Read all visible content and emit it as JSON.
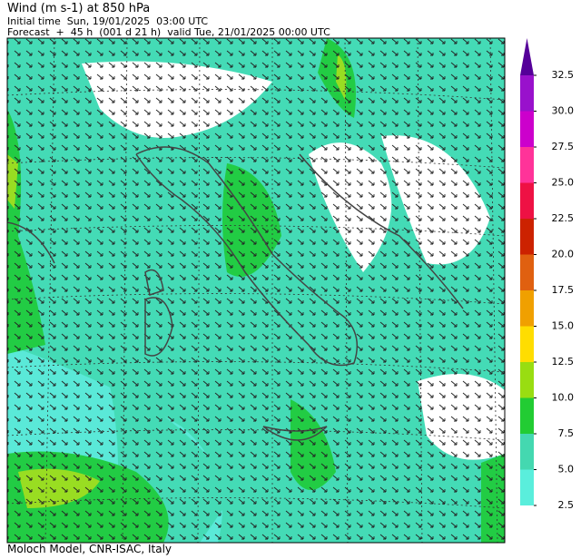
{
  "header": {
    "title": "Wind (m s-1) at 850 hPa",
    "initial_time": "Initial time  Sun, 19/01/2025  03:00 UTC",
    "forecast": "Forecast  +  45 h  (001 d 21 h)  valid Tue, 21/01/2025 00:00 UTC"
  },
  "colorbar": {
    "ticks": [
      {
        "value": 2.5,
        "label": "2.5"
      },
      {
        "value": 5,
        "label": "5.0"
      },
      {
        "value": 7.5,
        "label": "7.5"
      },
      {
        "value": 10,
        "label": "10.0"
      },
      {
        "value": 12.5,
        "label": "12.5"
      },
      {
        "value": 15,
        "label": "15.0"
      },
      {
        "value": 17.5,
        "label": "17.5"
      },
      {
        "value": 20,
        "label": "20.0"
      },
      {
        "value": 22.5,
        "label": "22.5"
      },
      {
        "value": 25,
        "label": "25.0"
      },
      {
        "value": 27.5,
        "label": "27.5"
      },
      {
        "value": 30,
        "label": "30.0"
      },
      {
        "value": 32.5,
        "label": "32.5"
      }
    ],
    "colors": [
      "#5aeedc",
      "#44d8b0",
      "#22cc33",
      "#99dd11",
      "#ffdd00",
      "#f0a000",
      "#e06010",
      "#cc2200",
      "#ee1144",
      "#ff3399",
      "#cc00cc",
      "#9911cc",
      "#550099"
    ]
  },
  "footer": "Moloch Model, CNR-ISAC, Italy"
}
